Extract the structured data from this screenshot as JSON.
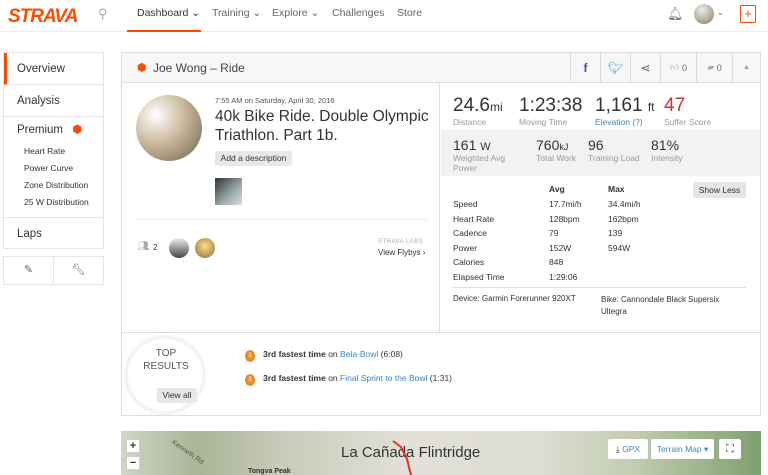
{
  "header": {
    "logo": "STRAVA",
    "nav": [
      {
        "label": "Dashboard ⌄"
      },
      {
        "label": "Training ⌄"
      },
      {
        "label": "Explore ⌄"
      },
      {
        "label": "Challenges"
      },
      {
        "label": "Store"
      }
    ],
    "plus": "+"
  },
  "sidebar": {
    "items": [
      "Overview",
      "Analysis",
      "Premium",
      "Laps"
    ],
    "premium_sub": [
      "Heart Rate",
      "Power Curve",
      "Zone Distribution",
      "25 W Distribution"
    ]
  },
  "activity": {
    "title_header": "Joe Wong – Ride",
    "likes": "0",
    "comments": "0",
    "date": "7:55 AM on Saturday, April 30, 2016",
    "name": "40k Bike Ride. Double Olympic Triathlon. Part 1b.",
    "add_description": "Add a description",
    "athletes_count": "2",
    "labs": "STRAVA LABS",
    "flybys": "View Flybys ›"
  },
  "stats": {
    "primary": [
      {
        "value": "24.6",
        "unit": "mi",
        "label": "Distance"
      },
      {
        "value": "1:23:38",
        "unit": "",
        "label": "Moving Time"
      },
      {
        "value": "1,161",
        "unit": "ft",
        "label": "Elevation (?)"
      },
      {
        "value": "47",
        "unit": "",
        "label": "Suffer Score"
      }
    ],
    "secondary": [
      {
        "value": "161",
        "unit": "W",
        "label": "Weighted Avg Power"
      },
      {
        "value": "760",
        "unit": "kJ",
        "label": "Total Work"
      },
      {
        "value": "96",
        "unit": "",
        "label": "Training Load"
      },
      {
        "value": "81%",
        "unit": "",
        "label": "Intensity"
      }
    ],
    "table_headers": [
      "Avg",
      "Max"
    ],
    "show_less": "Show Less",
    "rows": [
      [
        "Speed",
        "17.7mi/h",
        "34.4mi/h"
      ],
      [
        "Heart Rate",
        "128bpm",
        "162bpm"
      ],
      [
        "Cadence",
        "79",
        "139"
      ],
      [
        "Power",
        "152W",
        "594W"
      ],
      [
        "Calories",
        "848",
        ""
      ],
      [
        "Elapsed Time",
        "1:29:06",
        ""
      ]
    ],
    "device": "Device: Garmin Forerunner 920XT",
    "bike": "Bike: Cannondale Black Supersix Ultegra"
  },
  "top_results": {
    "title1": "TOP",
    "title2": "RESULTS",
    "view_all": "View all",
    "items": [
      {
        "rank": "3rd fastest time",
        "on": " on ",
        "segment": "Bela-Bowl",
        "time": " (6:08)"
      },
      {
        "rank": "3rd fastest time",
        "on": " on ",
        "segment": "Final Sprint to the Bowl",
        "time": " (1:31)"
      }
    ]
  },
  "map": {
    "place": "La Cañada Flintridge",
    "peak": "Tongva Peak",
    "road": "Kenneth Rd",
    "gpx": "GPX",
    "map_type": "Terrain Map ▾",
    "zoom_in": "+",
    "zoom_out": "−"
  },
  "colors": {
    "brand": "#fc4c02",
    "link": "#3b86c6",
    "suffer": "#d0312d"
  }
}
